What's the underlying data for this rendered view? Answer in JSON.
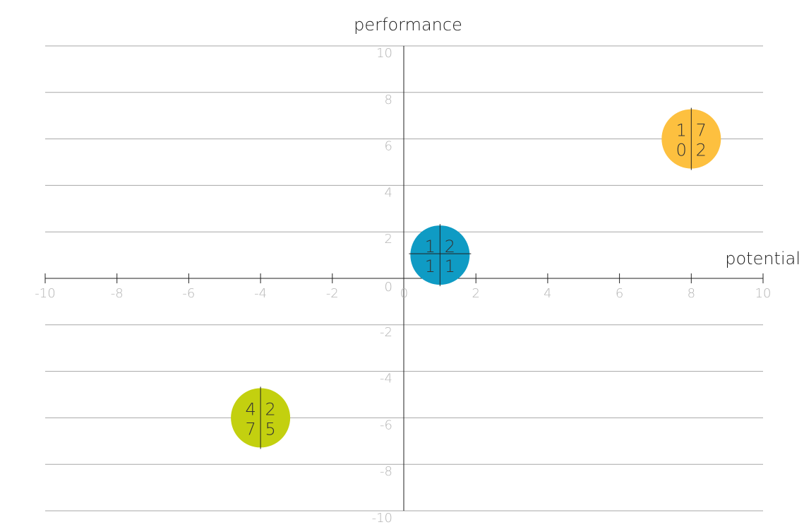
{
  "chart_data": {
    "type": "scatter",
    "title": "",
    "xlabel": "potential",
    "ylabel": "performance",
    "xlim": [
      -10,
      10
    ],
    "ylim": [
      -10,
      10
    ],
    "x_ticks": [
      "-10",
      "-8",
      "-6",
      "-4",
      "-2",
      "0",
      "2",
      "4",
      "6",
      "8",
      "10"
    ],
    "y_ticks": [
      "10",
      "8",
      "6",
      "4",
      "2",
      "0",
      "-2",
      "-4",
      "-6",
      "-8",
      "-10"
    ],
    "grid": "horizontal",
    "points": [
      {
        "x": 8,
        "y": 6,
        "color": "#fdc03f",
        "quadrants": {
          "top_left": "1",
          "top_right": "7",
          "bottom_left": "0",
          "bottom_right": "2"
        }
      },
      {
        "x": 1,
        "y": 1,
        "color": "#0f9bc4",
        "quadrants": {
          "top_left": "1",
          "top_right": "2",
          "bottom_left": "1",
          "bottom_right": "1"
        }
      },
      {
        "x": -4,
        "y": -6,
        "color": "#c3d00f",
        "quadrants": {
          "top_left": "4",
          "top_right": "2",
          "bottom_left": "7",
          "bottom_right": "5"
        }
      }
    ]
  }
}
